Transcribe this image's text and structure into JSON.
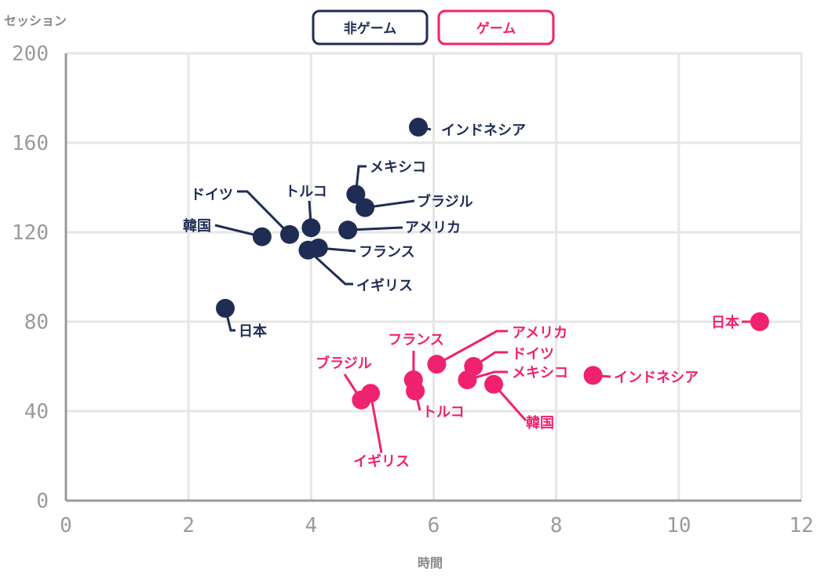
{
  "legend": {
    "nongame_label": "非ゲーム",
    "game_label": "ゲーム"
  },
  "chart_data": {
    "type": "scatter",
    "title": "",
    "xlabel": "時間",
    "ylabel": "セッション",
    "xlim": [
      0,
      12
    ],
    "ylim": [
      0,
      200
    ],
    "xticks": [
      0,
      2,
      4,
      6,
      8,
      10,
      12
    ],
    "yticks": [
      0,
      40,
      80,
      120,
      160,
      200
    ],
    "grid": true,
    "legend_position": "top-center",
    "series": [
      {
        "name": "非ゲーム",
        "color": "#1f2d55",
        "points": [
          {
            "label": "インドネシア",
            "x": 5.75,
            "y": 167
          },
          {
            "label": "メキシコ",
            "x": 4.73,
            "y": 137
          },
          {
            "label": "ブラジル",
            "x": 4.88,
            "y": 131
          },
          {
            "label": "トルコ",
            "x": 4.0,
            "y": 122
          },
          {
            "label": "アメリカ",
            "x": 4.6,
            "y": 121
          },
          {
            "label": "ドイツ",
            "x": 3.65,
            "y": 119
          },
          {
            "label": "韓国",
            "x": 3.2,
            "y": 118
          },
          {
            "label": "フランス",
            "x": 4.12,
            "y": 113
          },
          {
            "label": "イギリス",
            "x": 3.95,
            "y": 112
          },
          {
            "label": "日本",
            "x": 2.6,
            "y": 86
          }
        ]
      },
      {
        "name": "ゲーム",
        "color": "#f0216f",
        "points": [
          {
            "label": "日本",
            "x": 11.32,
            "y": 80
          },
          {
            "label": "アメリカ",
            "x": 6.05,
            "y": 61
          },
          {
            "label": "ドイツ",
            "x": 6.65,
            "y": 60
          },
          {
            "label": "メキシコ",
            "x": 6.55,
            "y": 54
          },
          {
            "label": "インドネシア",
            "x": 8.6,
            "y": 56
          },
          {
            "label": "韓国",
            "x": 6.98,
            "y": 52
          },
          {
            "label": "フランス",
            "x": 5.67,
            "y": 54
          },
          {
            "label": "トルコ",
            "x": 5.7,
            "y": 49
          },
          {
            "label": "ブラジル",
            "x": 4.82,
            "y": 45
          },
          {
            "label": "イギリス",
            "x": 4.97,
            "y": 48
          }
        ]
      }
    ]
  }
}
